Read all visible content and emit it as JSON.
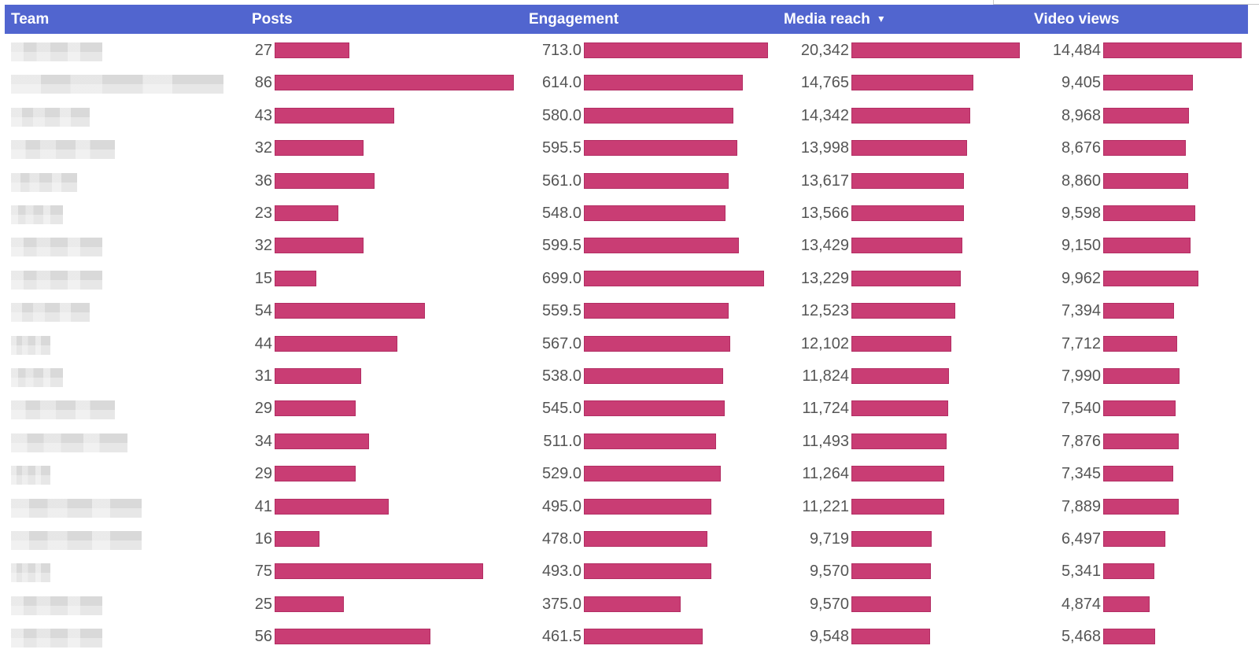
{
  "colors": {
    "header_bg": "#5165cf",
    "bar": "#c93d74",
    "text": "#555555"
  },
  "header": {
    "team": "Team",
    "posts": "Posts",
    "engagement": "Engagement",
    "media_reach": "Media reach",
    "video_views": "Video views",
    "sort_icon": "sort-descending-icon"
  },
  "chart_data": {
    "type": "table",
    "title": "",
    "columns": [
      "Team",
      "Posts",
      "Engagement",
      "Media reach",
      "Video views"
    ],
    "sorted_by": "Media reach",
    "sort_direction": "descending",
    "ranges": {
      "posts": [
        0,
        86
      ],
      "engagement": [
        0,
        713
      ],
      "media_reach": [
        0,
        20342
      ],
      "video_views": [
        0,
        14484
      ]
    },
    "rows": [
      {
        "posts": "27",
        "engagement": "713.0",
        "media_reach": "20,342",
        "video_views": "14,484",
        "posts_num": 27,
        "engagement_num": 713.0,
        "media_reach_num": 20342,
        "video_views_num": 14484
      },
      {
        "posts": "86",
        "engagement": "614.0",
        "media_reach": "14,765",
        "video_views": "9,405",
        "posts_num": 86,
        "engagement_num": 614.0,
        "media_reach_num": 14765,
        "video_views_num": 9405
      },
      {
        "posts": "43",
        "engagement": "580.0",
        "media_reach": "14,342",
        "video_views": "8,968",
        "posts_num": 43,
        "engagement_num": 580.0,
        "media_reach_num": 14342,
        "video_views_num": 8968
      },
      {
        "posts": "32",
        "engagement": "595.5",
        "media_reach": "13,998",
        "video_views": "8,676",
        "posts_num": 32,
        "engagement_num": 595.5,
        "media_reach_num": 13998,
        "video_views_num": 8676
      },
      {
        "posts": "36",
        "engagement": "561.0",
        "media_reach": "13,617",
        "video_views": "8,860",
        "posts_num": 36,
        "engagement_num": 561.0,
        "media_reach_num": 13617,
        "video_views_num": 8860
      },
      {
        "posts": "23",
        "engagement": "548.0",
        "media_reach": "13,566",
        "video_views": "9,598",
        "posts_num": 23,
        "engagement_num": 548.0,
        "media_reach_num": 13566,
        "video_views_num": 9598
      },
      {
        "posts": "32",
        "engagement": "599.5",
        "media_reach": "13,429",
        "video_views": "9,150",
        "posts_num": 32,
        "engagement_num": 599.5,
        "media_reach_num": 13429,
        "video_views_num": 9150
      },
      {
        "posts": "15",
        "engagement": "699.0",
        "media_reach": "13,229",
        "video_views": "9,962",
        "posts_num": 15,
        "engagement_num": 699.0,
        "media_reach_num": 13229,
        "video_views_num": 9962
      },
      {
        "posts": "54",
        "engagement": "559.5",
        "media_reach": "12,523",
        "video_views": "7,394",
        "posts_num": 54,
        "engagement_num": 559.5,
        "media_reach_num": 12523,
        "video_views_num": 7394
      },
      {
        "posts": "44",
        "engagement": "567.0",
        "media_reach": "12,102",
        "video_views": "7,712",
        "posts_num": 44,
        "engagement_num": 567.0,
        "media_reach_num": 12102,
        "video_views_num": 7712
      },
      {
        "posts": "31",
        "engagement": "538.0",
        "media_reach": "11,824",
        "video_views": "7,990",
        "posts_num": 31,
        "engagement_num": 538.0,
        "media_reach_num": 11824,
        "video_views_num": 7990
      },
      {
        "posts": "29",
        "engagement": "545.0",
        "media_reach": "11,724",
        "video_views": "7,540",
        "posts_num": 29,
        "engagement_num": 545.0,
        "media_reach_num": 11724,
        "video_views_num": 7540
      },
      {
        "posts": "34",
        "engagement": "511.0",
        "media_reach": "11,493",
        "video_views": "7,876",
        "posts_num": 34,
        "engagement_num": 511.0,
        "media_reach_num": 11493,
        "video_views_num": 7876
      },
      {
        "posts": "29",
        "engagement": "529.0",
        "media_reach": "11,264",
        "video_views": "7,345",
        "posts_num": 29,
        "engagement_num": 529.0,
        "media_reach_num": 11264,
        "video_views_num": 7345
      },
      {
        "posts": "41",
        "engagement": "495.0",
        "media_reach": "11,221",
        "video_views": "7,889",
        "posts_num": 41,
        "engagement_num": 495.0,
        "media_reach_num": 11221,
        "video_views_num": 7889
      },
      {
        "posts": "16",
        "engagement": "478.0",
        "media_reach": "9,719",
        "video_views": "6,497",
        "posts_num": 16,
        "engagement_num": 478.0,
        "media_reach_num": 9719,
        "video_views_num": 6497
      },
      {
        "posts": "75",
        "engagement": "493.0",
        "media_reach": "9,570",
        "video_views": "5,341",
        "posts_num": 75,
        "engagement_num": 493.0,
        "media_reach_num": 9570,
        "video_views_num": 5341
      },
      {
        "posts": "25",
        "engagement": "375.0",
        "media_reach": "9,570",
        "video_views": "4,874",
        "posts_num": 25,
        "engagement_num": 375.0,
        "media_reach_num": 9570,
        "video_views_num": 4874
      },
      {
        "posts": "56",
        "engagement": "461.5",
        "media_reach": "9,548",
        "video_views": "5,468",
        "posts_num": 56,
        "engagement_num": 461.5,
        "media_reach_num": 9548,
        "video_views_num": 5468
      }
    ]
  }
}
